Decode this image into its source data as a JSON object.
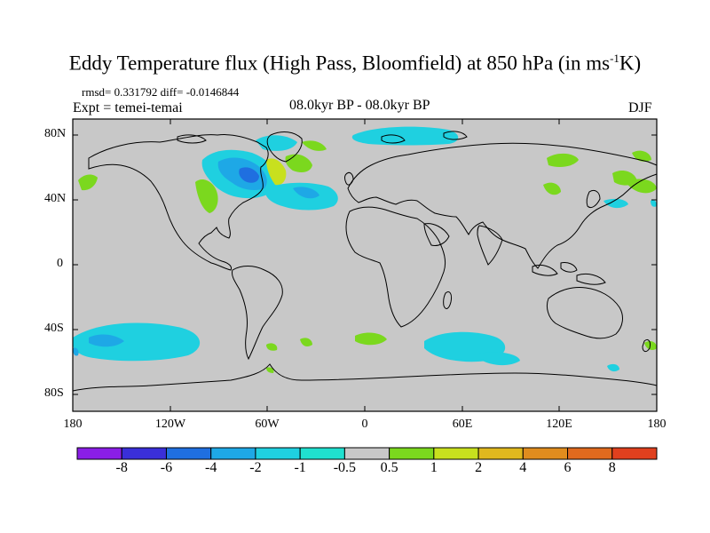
{
  "title": "Eddy Temperature flux (High Pass, Bloomfield) at 850 hPa (in ms",
  "title_exp": "-1",
  "title_end": "K)",
  "stats": "rmsd= 0.331792 diff= -0.0146844",
  "expt": "Expt = temei-temai",
  "period": "08.0kyr BP - 08.0kyr BP",
  "season": "DJF",
  "lat_labels": [
    "80N",
    "40N",
    "0",
    "40S",
    "80S"
  ],
  "lon_labels": [
    "180",
    "120W",
    "60W",
    "0",
    "60E",
    "120E",
    "180"
  ],
  "colorbar": {
    "labels": [
      "-8",
      "-6",
      "-4",
      "-2",
      "-1",
      "-0.5",
      "0.5",
      "1",
      "2",
      "4",
      "6",
      "8"
    ],
    "colors": [
      "#8a1ee6",
      "#3a2fd9",
      "#1f6fe0",
      "#1ea8e6",
      "#1fd0e0",
      "#1fe0cf",
      "#c8c8c8",
      "#7bd81e",
      "#c8e01e",
      "#e0b81e",
      "#e08c1e",
      "#e06a1e",
      "#e0401e"
    ]
  },
  "map": {
    "land_missing_color": "#c8c8c8"
  }
}
